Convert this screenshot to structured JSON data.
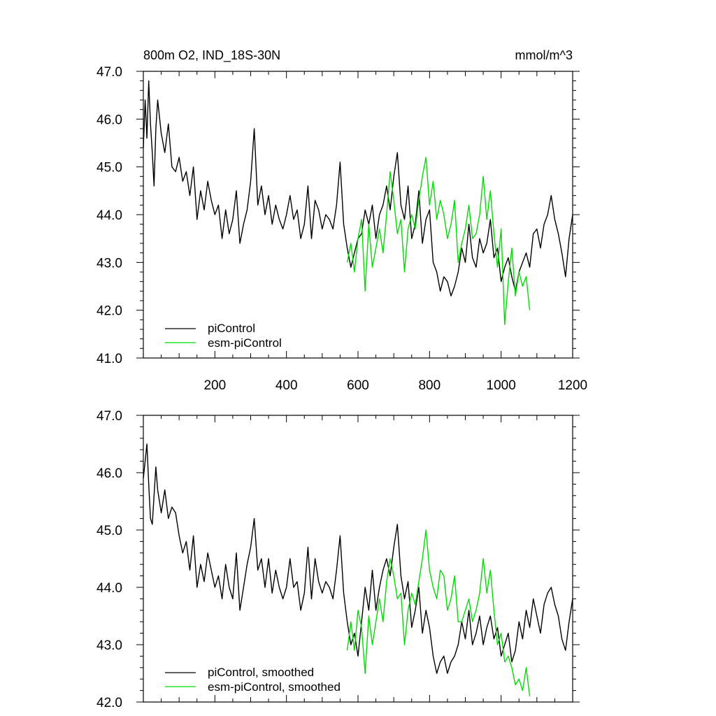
{
  "chart_data": [
    {
      "type": "line",
      "title": "800m O2, IND_18S-30N",
      "units": "mmol/m^3",
      "xlim": [
        0,
        1200
      ],
      "ylim": [
        41.0,
        47.0
      ],
      "xticks": [
        200,
        400,
        600,
        800,
        1000,
        1200
      ],
      "xtick_labels": [
        "200",
        "400",
        "600",
        "800",
        "1000",
        "1200"
      ],
      "yticks": [
        41.0,
        42.0,
        43.0,
        44.0,
        45.0,
        46.0,
        47.0
      ],
      "ytick_labels": [
        "41.0",
        "42.0",
        "43.0",
        "44.0",
        "45.0",
        "46.0",
        "47.0"
      ],
      "legend_position": "bottom-left",
      "series": [
        {
          "name": "piControl",
          "color": "#000000",
          "x": [
            0,
            5,
            10,
            15,
            20,
            25,
            30,
            35,
            40,
            50,
            60,
            70,
            80,
            90,
            100,
            110,
            120,
            130,
            140,
            150,
            160,
            170,
            180,
            190,
            200,
            210,
            220,
            230,
            240,
            250,
            260,
            270,
            280,
            290,
            300,
            310,
            320,
            330,
            340,
            350,
            360,
            370,
            380,
            390,
            400,
            410,
            420,
            430,
            440,
            450,
            460,
            470,
            480,
            490,
            500,
            510,
            520,
            530,
            540,
            550,
            560,
            570,
            580,
            590,
            600,
            610,
            620,
            630,
            640,
            650,
            660,
            670,
            680,
            690,
            700,
            710,
            720,
            730,
            740,
            750,
            760,
            770,
            780,
            790,
            800,
            810,
            820,
            830,
            840,
            850,
            860,
            870,
            880,
            890,
            900,
            910,
            920,
            930,
            940,
            950,
            960,
            970,
            980,
            990,
            1000,
            1010,
            1020,
            1030,
            1040,
            1050,
            1060,
            1070,
            1080,
            1090,
            1100,
            1110,
            1120,
            1130,
            1140,
            1150,
            1160,
            1170,
            1180,
            1190,
            1200
          ],
          "values": [
            45.4,
            46.4,
            45.6,
            46.8,
            45.9,
            45.3,
            44.6,
            45.8,
            46.4,
            45.7,
            45.3,
            45.9,
            45.0,
            44.9,
            45.2,
            44.7,
            44.9,
            44.4,
            45.0,
            43.9,
            44.5,
            44.1,
            44.7,
            44.3,
            44.0,
            44.2,
            43.5,
            44.1,
            43.6,
            43.9,
            44.5,
            43.4,
            43.8,
            44.1,
            44.7,
            45.8,
            44.2,
            44.6,
            44.0,
            44.4,
            43.8,
            44.2,
            43.9,
            43.7,
            44.0,
            44.4,
            43.9,
            44.1,
            43.5,
            43.8,
            44.6,
            43.5,
            44.3,
            44.1,
            43.7,
            44.0,
            43.9,
            43.7,
            44.2,
            45.1,
            43.8,
            43.3,
            42.9,
            43.2,
            43.5,
            43.6,
            44.1,
            43.8,
            44.2,
            43.5,
            44.0,
            44.2,
            44.6,
            44.1,
            44.8,
            45.3,
            44.2,
            43.9,
            44.6,
            43.5,
            43.8,
            44.5,
            43.4,
            43.9,
            44.1,
            43.0,
            42.8,
            42.4,
            42.7,
            42.6,
            42.3,
            42.5,
            42.8,
            43.3,
            43.0,
            43.8,
            43.1,
            42.9,
            43.5,
            43.2,
            43.4,
            43.9,
            43.1,
            43.3,
            42.6,
            42.9,
            43.1,
            42.7,
            42.4,
            42.8,
            43.0,
            43.2,
            42.9,
            43.6,
            43.7,
            43.3,
            43.8,
            44.0,
            44.4,
            43.9,
            43.6,
            43.2,
            42.7,
            43.5,
            44.0
          ]
        },
        {
          "name": "esm-piControl",
          "color": "#00dd00",
          "x": [
            570,
            580,
            590,
            600,
            610,
            620,
            630,
            640,
            650,
            660,
            670,
            680,
            690,
            700,
            710,
            720,
            730,
            740,
            750,
            760,
            770,
            780,
            790,
            800,
            810,
            820,
            830,
            840,
            850,
            860,
            870,
            880,
            890,
            900,
            910,
            920,
            930,
            940,
            950,
            960,
            970,
            980,
            990,
            1000,
            1010,
            1020,
            1030,
            1040,
            1050,
            1060,
            1070,
            1080
          ],
          "values": [
            43.0,
            43.4,
            42.8,
            43.5,
            43.9,
            42.4,
            43.8,
            42.9,
            43.3,
            43.7,
            43.2,
            44.0,
            44.9,
            44.3,
            43.6,
            43.9,
            42.8,
            43.7,
            44.0,
            43.7,
            44.3,
            44.8,
            45.2,
            44.2,
            44.7,
            43.9,
            44.3,
            44.0,
            43.5,
            43.8,
            44.3,
            43.0,
            43.4,
            43.7,
            44.2,
            43.5,
            43.6,
            44.0,
            44.8,
            43.9,
            44.5,
            43.6,
            42.9,
            43.7,
            41.7,
            42.6,
            43.3,
            42.3,
            42.8,
            42.5,
            42.7,
            42.0
          ]
        }
      ]
    },
    {
      "type": "line",
      "xlim": [
        0,
        1200
      ],
      "ylim": [
        42.0,
        47.0
      ],
      "yticks": [
        42.0,
        43.0,
        44.0,
        45.0,
        46.0,
        47.0
      ],
      "ytick_labels": [
        "42.0",
        "43.0",
        "44.0",
        "45.0",
        "46.0",
        "47.0"
      ],
      "legend_position": "bottom-left",
      "series": [
        {
          "name": "piControl, smoothed",
          "color": "#000000",
          "x": [
            0,
            5,
            10,
            15,
            20,
            25,
            30,
            35,
            40,
            50,
            60,
            70,
            80,
            90,
            100,
            110,
            120,
            130,
            140,
            150,
            160,
            170,
            180,
            190,
            200,
            210,
            220,
            230,
            240,
            250,
            260,
            270,
            280,
            290,
            300,
            310,
            320,
            330,
            340,
            350,
            360,
            370,
            380,
            390,
            400,
            410,
            420,
            430,
            440,
            450,
            460,
            470,
            480,
            490,
            500,
            510,
            520,
            530,
            540,
            550,
            560,
            570,
            580,
            590,
            600,
            610,
            620,
            630,
            640,
            650,
            660,
            670,
            680,
            690,
            700,
            710,
            720,
            730,
            740,
            750,
            760,
            770,
            780,
            790,
            800,
            810,
            820,
            830,
            840,
            850,
            860,
            870,
            880,
            890,
            900,
            910,
            920,
            930,
            940,
            950,
            960,
            970,
            980,
            990,
            1000,
            1010,
            1020,
            1030,
            1040,
            1050,
            1060,
            1070,
            1080,
            1090,
            1100,
            1110,
            1120,
            1130,
            1140,
            1150,
            1160,
            1170,
            1180,
            1190,
            1200
          ],
          "values": [
            45.9,
            46.2,
            46.5,
            45.8,
            45.2,
            45.1,
            45.6,
            46.1,
            45.7,
            45.3,
            45.7,
            45.2,
            45.4,
            45.3,
            44.9,
            44.6,
            44.8,
            44.3,
            44.9,
            44.0,
            44.4,
            44.1,
            44.6,
            44.3,
            44.0,
            44.2,
            43.8,
            44.4,
            44.0,
            43.8,
            44.6,
            43.6,
            44.0,
            44.4,
            44.7,
            45.2,
            44.3,
            44.5,
            44.0,
            44.5,
            43.9,
            44.3,
            44.0,
            43.8,
            44.0,
            44.5,
            44.0,
            44.1,
            43.6,
            43.9,
            44.7,
            43.8,
            44.5,
            44.1,
            43.9,
            44.1,
            44.0,
            43.8,
            44.3,
            44.9,
            43.9,
            43.4,
            43.0,
            43.2,
            42.8,
            43.4,
            44.0,
            43.6,
            44.3,
            43.6,
            44.0,
            44.3,
            44.5,
            44.2,
            44.7,
            45.1,
            44.2,
            43.8,
            44.1,
            43.3,
            43.6,
            44.0,
            43.2,
            43.6,
            43.3,
            42.8,
            42.5,
            42.7,
            42.8,
            42.5,
            42.7,
            42.8,
            43.0,
            43.4,
            43.1,
            43.6,
            43.0,
            43.2,
            43.5,
            43.0,
            43.3,
            43.5,
            43.1,
            43.3,
            42.8,
            43.0,
            43.2,
            42.7,
            42.9,
            43.4,
            43.1,
            43.6,
            43.3,
            43.8,
            43.5,
            43.2,
            43.7,
            43.9,
            44.0,
            43.7,
            43.5,
            43.1,
            42.9,
            43.4,
            43.8
          ]
        },
        {
          "name": "esm-piControl, smoothed",
          "color": "#00dd00",
          "x": [
            570,
            580,
            590,
            600,
            610,
            620,
            630,
            640,
            650,
            660,
            670,
            680,
            690,
            700,
            710,
            720,
            730,
            740,
            750,
            760,
            770,
            780,
            790,
            800,
            810,
            820,
            830,
            840,
            850,
            860,
            870,
            880,
            890,
            900,
            910,
            920,
            930,
            940,
            950,
            960,
            970,
            980,
            990,
            1000,
            1010,
            1020,
            1030,
            1040,
            1050,
            1060,
            1070,
            1080
          ],
          "values": [
            42.9,
            43.4,
            42.9,
            43.6,
            43.3,
            42.5,
            43.5,
            43.0,
            43.4,
            43.8,
            43.4,
            44.1,
            44.5,
            44.2,
            43.8,
            43.9,
            43.0,
            43.6,
            43.9,
            43.7,
            44.1,
            44.5,
            45.0,
            44.3,
            44.0,
            43.8,
            44.3,
            44.2,
            43.6,
            43.8,
            44.2,
            43.4,
            43.4,
            43.6,
            43.8,
            43.4,
            43.6,
            43.9,
            44.5,
            43.9,
            44.3,
            43.6,
            43.0,
            43.2,
            42.7,
            42.8,
            42.6,
            42.3,
            42.4,
            42.2,
            42.6,
            42.1
          ]
        }
      ]
    }
  ]
}
